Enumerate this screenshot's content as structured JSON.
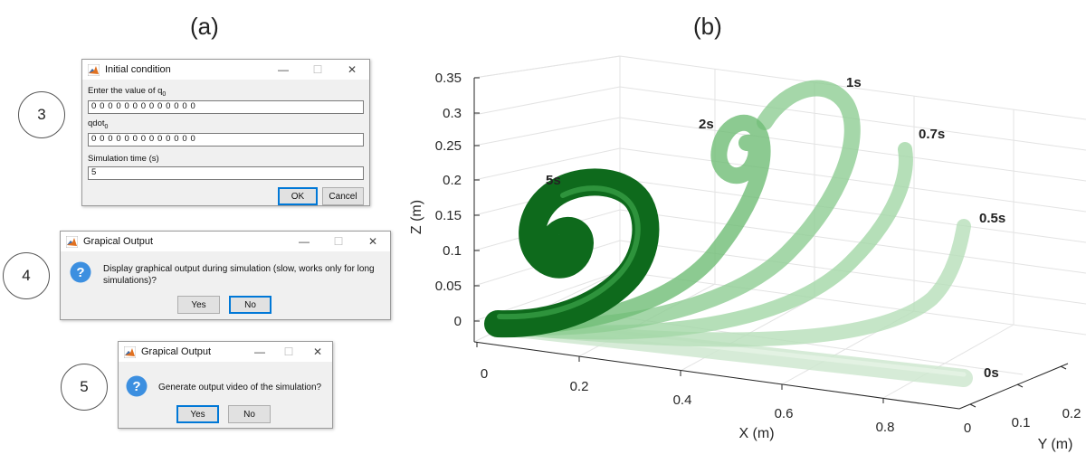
{
  "panels": {
    "a": "(a)",
    "b": "(b)"
  },
  "steps": [
    "3",
    "4",
    "5"
  ],
  "initial_dialog": {
    "title": "Initial condition",
    "q0_label_prefix": "Enter the value of q",
    "q0_label_sub": "0",
    "q0_value": "0 0 0 0 0 0 0 0 0 0 0 0 0",
    "qdot_label_prefix": "qdot",
    "qdot_label_sub": "0",
    "qdot_value": "0 0 0 0 0 0 0 0 0 0 0 0 0",
    "time_label": "Simulation time (s)",
    "time_value": "5",
    "ok": "OK",
    "cancel": "Cancel"
  },
  "graphical_dialog": {
    "title": "Grapical Output",
    "message_line1": "Display graphical output during simulation (slow, works only for long",
    "message_line2": "simulations)?",
    "yes": "Yes",
    "no": "No",
    "default": "no"
  },
  "video_dialog": {
    "title": "Grapical Output",
    "message": "Generate output video of the simulation?",
    "yes": "Yes",
    "no": "No",
    "default": "yes"
  },
  "window_controls": {
    "minimize": "—",
    "maximize": "☐",
    "close": "✕"
  },
  "plot": {
    "z_label": "Z (m)",
    "x_label": "X (m)",
    "y_label": "Y (m)",
    "z_ticks": [
      "0",
      "0.05",
      "0.1",
      "0.15",
      "0.2",
      "0.25",
      "0.3",
      "0.35"
    ],
    "x_ticks": [
      "0",
      "0.2",
      "0.4",
      "0.6",
      "0.8"
    ],
    "y_ticks": [
      "0",
      "0.1",
      "0.2"
    ],
    "time_labels": [
      "0s",
      "0.5s",
      "0.7s",
      "1s",
      "2s",
      "5s"
    ],
    "colors": {
      "faint": "#a9d8ad",
      "mid": "#6cbf73",
      "strong": "#1f7f2a",
      "dark": "#0b5e17"
    }
  }
}
